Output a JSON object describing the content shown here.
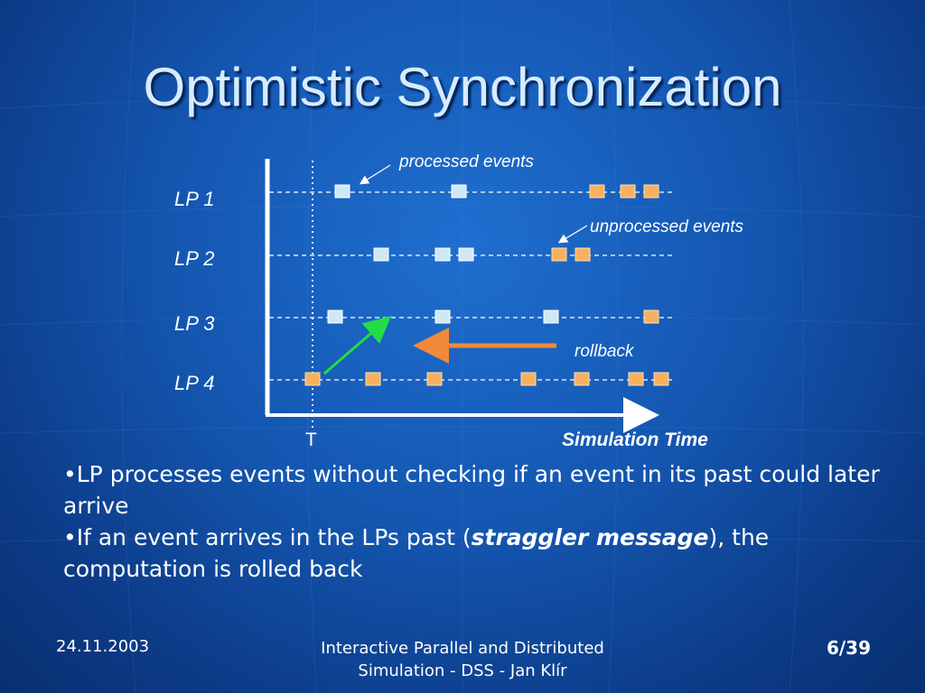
{
  "slide": {
    "title": "Optimistic Synchronization"
  },
  "diagram": {
    "lanes": [
      {
        "label": "LP 1",
        "processed": [
          1,
          2
        ],
        "unprocessed": [
          3,
          4,
          5
        ]
      },
      {
        "label": "LP 2",
        "processed": [
          1,
          2,
          3
        ],
        "unprocessed": [
          4,
          5
        ]
      },
      {
        "label": "LP 3",
        "processed": [
          1,
          2,
          3
        ],
        "unprocessed": [
          4
        ]
      },
      {
        "label": "LP 4",
        "processed": [],
        "unprocessed": [
          1,
          2,
          3,
          4,
          5,
          6,
          7
        ]
      }
    ],
    "time_marker_label": "T",
    "axis_label": "Simulation Time",
    "annotations": {
      "processed": "processed events",
      "unprocessed": "unprocessed events",
      "rollback": "rollback"
    },
    "colors": {
      "processed": "#cfe8f7",
      "unprocessed": "#f7b060",
      "straggler_arrow": "#22dd44",
      "rollback_arrow": "#f08a3a"
    }
  },
  "bullets": {
    "b1": "•LP processes events without checking if an event in its past could later arrive",
    "b2_pre": "•If an event arrives in the LPs past (",
    "b2_em": "straggler message",
    "b2_post": "), the computation is rolled back"
  },
  "footer": {
    "date": "24.11.2003",
    "center_line1": "Interactive Parallel and Distributed",
    "center_line2": "Simulation - DSS - Jan Klír",
    "page": "6/39"
  }
}
